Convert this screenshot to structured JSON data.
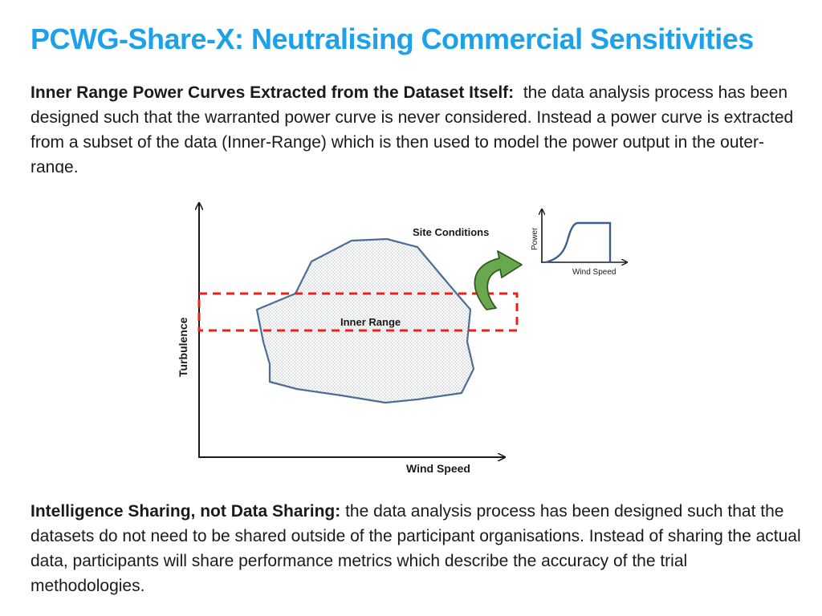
{
  "header": {
    "title": "PCWG-Share-X: Neutralising Commercial Sensitivities"
  },
  "section1": {
    "heading": "Inner Range Power Curves Extracted from the Dataset Itself:",
    "body": "the data analysis process has been designed such that the warranted power curve is never considered. Instead a power curve is extracted from a subset of the data (Inner-Range) which is then used to model the power output in the outer-range."
  },
  "diagram": {
    "y_axis_label": "Turbulence",
    "x_axis_label": "Wind Speed",
    "site_conditions_label": "Site Conditions",
    "inner_range_label": "Inner Range",
    "inset": {
      "y_axis_label": "Power",
      "x_axis_label": "Wind Speed"
    },
    "colors": {
      "axis": "#1a1a1a",
      "cloud_stroke": "#4a6e96",
      "cloud_dots": "#b8bcc4",
      "inner_range_box": "#e8201e",
      "arrow_fill": "#6aa84f",
      "arrow_stroke": "#2f5d1f",
      "inset_curve": "#3b5e8c"
    }
  },
  "section2": {
    "heading": "Intelligence Sharing, not Data Sharing:",
    "body": "the data analysis process has been designed such that the datasets do not need to be shared outside of the participant organisations. Instead of sharing the actual data, participants will share performance metrics which describe the accuracy of the trial methodologies."
  }
}
